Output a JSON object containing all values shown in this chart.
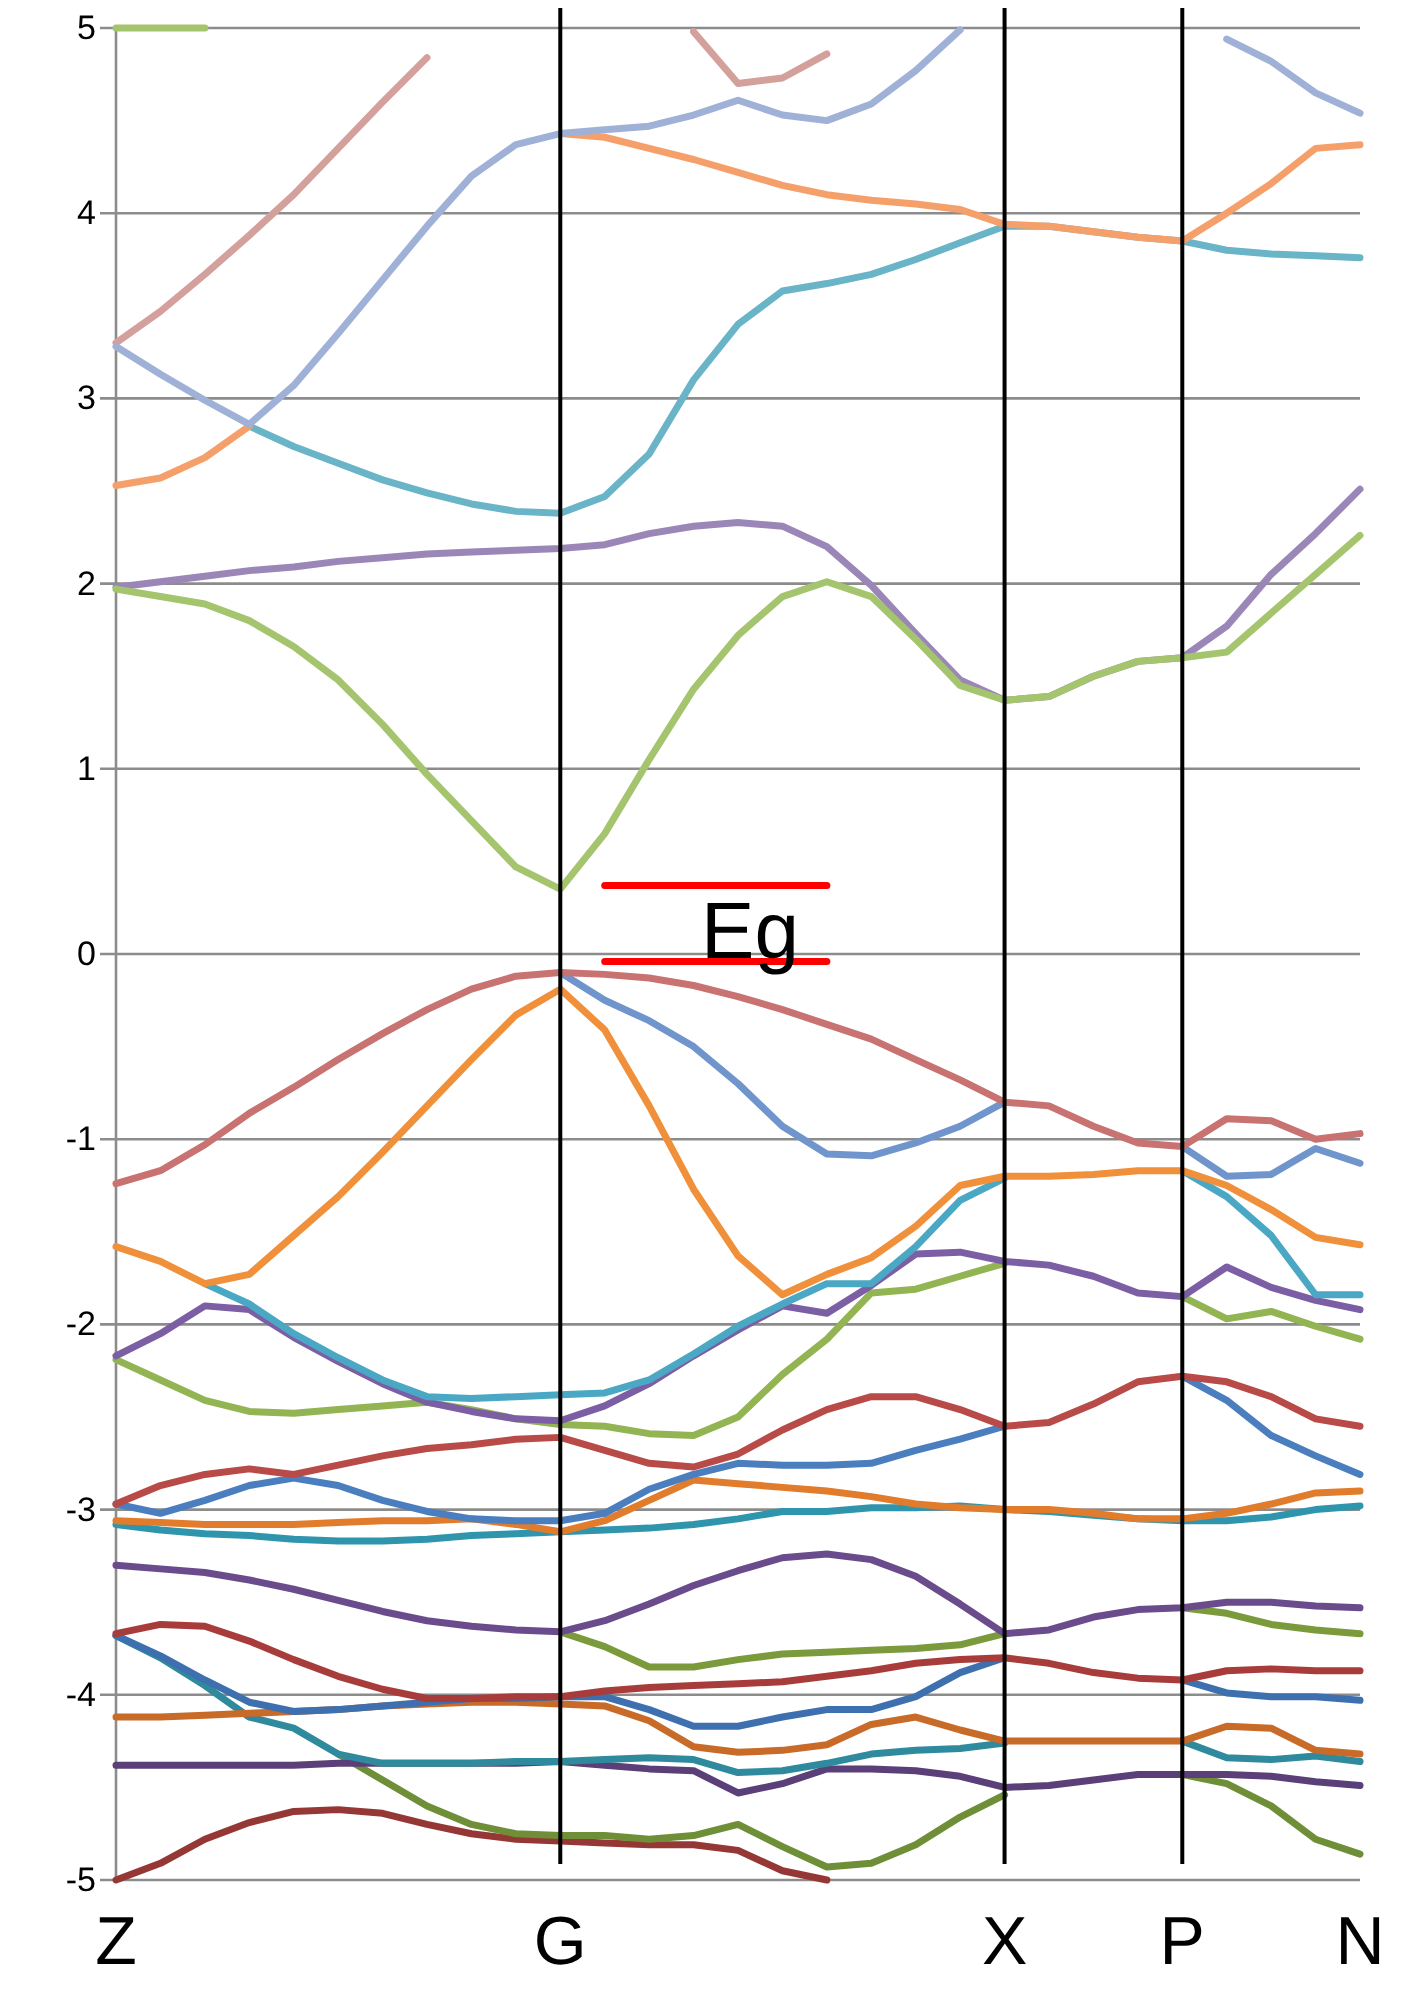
{
  "chart_data": {
    "type": "line",
    "ylim": [
      -5,
      5
    ],
    "categories": [
      "Z",
      null,
      null,
      null,
      null,
      null,
      null,
      null,
      null,
      null,
      "G",
      null,
      null,
      null,
      null,
      null,
      null,
      null,
      null,
      null,
      "X",
      null,
      null,
      null,
      "P",
      null,
      null,
      null,
      "N"
    ],
    "yticks": [
      -5,
      -4,
      -3,
      -2,
      -1,
      0,
      1,
      2,
      3,
      4,
      5
    ],
    "grid": "y",
    "series": [
      {
        "color": "#a5c46e",
        "values": [
          5,
          5,
          5,
          null,
          null,
          null,
          null,
          null,
          null,
          null,
          null,
          null,
          null,
          null,
          null,
          null,
          null,
          null,
          null,
          null,
          null,
          null,
          null,
          null,
          null,
          null,
          null,
          null,
          null
        ]
      },
      {
        "color": "#d4a09c",
        "values": [
          3.3,
          3.47,
          3.67,
          3.88,
          4.1,
          4.35,
          4.6,
          4.84,
          null,
          null,
          null,
          null,
          null,
          4.98,
          4.7,
          4.73,
          4.86,
          null,
          null,
          null,
          null,
          null,
          null,
          null,
          null,
          null,
          null,
          null,
          null
        ]
      },
      {
        "color": "#6ab4c8",
        "values": [
          null,
          null,
          null,
          2.85,
          2.74,
          2.65,
          2.56,
          2.49,
          2.43,
          2.39,
          2.38,
          2.47,
          2.7,
          3.1,
          3.4,
          3.58,
          3.62,
          3.67,
          3.75,
          3.84,
          3.93,
          3.93,
          3.9,
          3.87,
          3.85,
          3.8,
          3.78,
          3.77,
          3.76
        ]
      },
      {
        "color": "#f5a06a",
        "values": [
          2.53,
          2.57,
          2.68,
          2.85,
          null,
          null,
          null,
          null,
          null,
          null,
          4.43,
          4.41,
          4.35,
          4.29,
          4.22,
          4.15,
          4.1,
          4.07,
          4.05,
          4.02,
          3.94,
          3.93,
          3.9,
          3.87,
          3.85,
          4.0,
          4.16,
          4.35,
          4.37
        ]
      },
      {
        "color": "#9fb1d6",
        "values": [
          3.28,
          3.13,
          2.99,
          2.86,
          3.07,
          3.35,
          3.64,
          3.93,
          4.2,
          4.37,
          4.43,
          4.45,
          4.47,
          4.53,
          4.61,
          4.53,
          4.5,
          4.59,
          4.77,
          4.99,
          null,
          null,
          null,
          null,
          null,
          4.94,
          4.82,
          4.65,
          4.54
        ]
      },
      {
        "color": "#9b86b8",
        "values": [
          1.98,
          2.01,
          2.04,
          2.07,
          2.09,
          2.12,
          2.14,
          2.16,
          2.17,
          2.18,
          2.19,
          2.21,
          2.27,
          2.31,
          2.33,
          2.31,
          2.2,
          1.99,
          1.73,
          1.48,
          1.37,
          1.39,
          1.5,
          1.58,
          1.6,
          1.77,
          2.05,
          2.27,
          2.51
        ]
      },
      {
        "color": "#a5c46e",
        "values": [
          1.97,
          1.93,
          1.89,
          1.8,
          1.66,
          1.48,
          1.24,
          0.97,
          0.72,
          0.47,
          0.35,
          0.65,
          1.05,
          1.43,
          1.72,
          1.93,
          2.01,
          1.93,
          1.7,
          1.45,
          1.37,
          1.39,
          1.5,
          1.58,
          1.6,
          1.63,
          1.84,
          2.05,
          2.26
        ]
      },
      {
        "color": "#953735",
        "values": [
          -5,
          -4.91,
          -4.78,
          -4.69,
          -4.63,
          -4.62,
          -4.64,
          -4.7,
          -4.75,
          -4.78,
          -4.79,
          -4.8,
          -4.81,
          -4.81,
          -4.84,
          -4.95,
          -5,
          null,
          null,
          null,
          null,
          null,
          null,
          null,
          null,
          null,
          null,
          null,
          null
        ]
      },
      {
        "color": "#6e8f38",
        "values": [
          null,
          null,
          null,
          null,
          null,
          -4.32,
          -4.46,
          -4.6,
          -4.7,
          -4.75,
          -4.76,
          -4.76,
          -4.78,
          -4.76,
          -4.7,
          -4.82,
          -4.93,
          -4.91,
          -4.81,
          -4.66,
          -4.54,
          null,
          null,
          null,
          -4.43,
          -4.48,
          -4.6,
          -4.78,
          -4.86
        ]
      },
      {
        "color": "#5a3f78",
        "values": [
          -4.38,
          -4.38,
          -4.38,
          -4.38,
          -4.38,
          -4.37,
          -4.37,
          -4.37,
          -4.37,
          -4.37,
          -4.36,
          -4.38,
          -4.4,
          -4.41,
          -4.53,
          -4.48,
          -4.4,
          -4.4,
          -4.41,
          -4.44,
          -4.5,
          -4.49,
          -4.46,
          -4.43,
          -4.43,
          -4.43,
          -4.44,
          -4.47,
          -4.49
        ]
      },
      {
        "color": "#2e8a9c",
        "values": [
          -3.68,
          -3.8,
          -3.95,
          -4.12,
          -4.18,
          -4.32,
          -4.37,
          -4.37,
          -4.37,
          -4.36,
          -4.36,
          -4.35,
          -4.34,
          -4.35,
          -4.42,
          -4.41,
          -4.37,
          -4.32,
          -4.3,
          -4.29,
          -4.26,
          null,
          null,
          null,
          -4.25,
          -4.34,
          -4.35,
          -4.33,
          -4.36
        ]
      },
      {
        "color": "#c86a28",
        "values": [
          -4.12,
          -4.12,
          -4.11,
          -4.1,
          -4.09,
          -4.08,
          -4.06,
          -4.05,
          -4.04,
          -4.04,
          -4.05,
          -4.06,
          -4.14,
          -4.28,
          -4.31,
          -4.3,
          -4.27,
          -4.16,
          -4.12,
          -4.19,
          -4.25,
          -4.25,
          -4.25,
          -4.25,
          -4.25,
          -4.17,
          -4.18,
          -4.3,
          -4.32
        ]
      },
      {
        "color": "#3e6fae",
        "values": [
          -3.68,
          -3.79,
          -3.92,
          -4.04,
          -4.09,
          -4.08,
          -4.06,
          -4.04,
          -4.02,
          -4.02,
          -4.01,
          -4.01,
          -4.08,
          -4.17,
          -4.17,
          -4.12,
          -4.08,
          -4.08,
          -4.01,
          -3.88,
          -3.8,
          null,
          null,
          null,
          -3.92,
          -3.99,
          -4.01,
          -4.01,
          -4.03
        ]
      },
      {
        "color": "#a83c3a",
        "values": [
          -3.67,
          -3.62,
          -3.63,
          -3.71,
          -3.81,
          -3.9,
          -3.97,
          -4.02,
          -4.02,
          -4.01,
          -4.01,
          -3.98,
          -3.96,
          -3.95,
          -3.94,
          -3.93,
          -3.9,
          -3.87,
          -3.83,
          -3.81,
          -3.8,
          -3.83,
          -3.88,
          -3.91,
          -3.92,
          -3.87,
          -3.86,
          -3.87,
          -3.87
        ]
      },
      {
        "color": "#7a9a3c",
        "values": [
          null,
          null,
          null,
          null,
          null,
          null,
          null,
          null,
          null,
          null,
          -3.66,
          -3.74,
          -3.85,
          -3.85,
          -3.81,
          -3.78,
          -3.77,
          -3.76,
          -3.75,
          -3.73,
          -3.67,
          null,
          null,
          null,
          -3.53,
          -3.56,
          -3.62,
          -3.65,
          -3.67
        ]
      },
      {
        "color": "#6a4c8c",
        "values": [
          -3.3,
          -3.32,
          -3.34,
          -3.38,
          -3.43,
          -3.49,
          -3.55,
          -3.6,
          -3.63,
          -3.65,
          -3.66,
          -3.6,
          -3.51,
          -3.41,
          -3.33,
          -3.26,
          -3.24,
          -3.27,
          -3.36,
          -3.51,
          -3.67,
          -3.65,
          -3.58,
          -3.54,
          -3.53,
          -3.5,
          -3.5,
          -3.52,
          -3.53
        ]
      },
      {
        "color": "#2f95ac",
        "values": [
          -3.08,
          -3.11,
          -3.13,
          -3.14,
          -3.16,
          -3.17,
          -3.17,
          -3.16,
          -3.14,
          -3.13,
          -3.12,
          -3.11,
          -3.1,
          -3.08,
          -3.05,
          -3.01,
          -3.01,
          -2.99,
          -2.99,
          -2.98,
          -3.0,
          -3.01,
          -3.03,
          -3.05,
          -3.06,
          -3.06,
          -3.04,
          -3.0,
          -2.98
        ]
      },
      {
        "color": "#e07c2c",
        "values": [
          -3.06,
          -3.07,
          -3.08,
          -3.08,
          -3.08,
          -3.07,
          -3.06,
          -3.06,
          -3.05,
          -3.08,
          -3.12,
          -3.06,
          -2.95,
          -2.84,
          -2.86,
          -2.88,
          -2.9,
          -2.93,
          -2.97,
          -2.99,
          -3.0,
          -3.0,
          -3.02,
          -3.05,
          -3.05,
          -3.02,
          -2.97,
          -2.91,
          -2.9
        ]
      },
      {
        "color": "#4a7ebe",
        "values": [
          -2.97,
          -3.02,
          -2.95,
          -2.87,
          -2.83,
          -2.87,
          -2.95,
          -3.01,
          -3.05,
          -3.06,
          -3.06,
          -3.02,
          -2.89,
          -2.81,
          -2.75,
          -2.76,
          -2.76,
          -2.75,
          -2.68,
          -2.62,
          -2.55,
          null,
          null,
          null,
          -2.28,
          -2.41,
          -2.6,
          -2.71,
          -2.81
        ]
      },
      {
        "color": "#b84a48",
        "values": [
          -2.97,
          -2.87,
          -2.81,
          -2.78,
          -2.81,
          -2.76,
          -2.71,
          -2.67,
          -2.65,
          -2.62,
          -2.61,
          -2.68,
          -2.75,
          -2.77,
          -2.7,
          -2.57,
          -2.46,
          -2.39,
          -2.39,
          -2.46,
          -2.55,
          -2.53,
          -2.43,
          -2.31,
          -2.28,
          -2.31,
          -2.39,
          -2.51,
          -2.55
        ]
      },
      {
        "color": "#92b452",
        "values": [
          -2.19,
          -2.3,
          -2.41,
          -2.47,
          -2.48,
          -2.46,
          -2.44,
          -2.42,
          -2.46,
          -2.51,
          -2.54,
          -2.55,
          -2.59,
          -2.6,
          -2.5,
          -2.27,
          -2.08,
          -1.83,
          -1.81,
          -1.74,
          -1.67,
          null,
          null,
          null,
          -1.85,
          -1.97,
          -1.93,
          -2.01,
          -2.08
        ]
      },
      {
        "color": "#7b5ea4",
        "values": [
          -2.17,
          -2.05,
          -1.9,
          -1.92,
          -2.07,
          -2.2,
          -2.32,
          -2.42,
          -2.47,
          -2.51,
          -2.52,
          -2.44,
          -2.32,
          -2.17,
          -2.03,
          -1.9,
          -1.94,
          -1.79,
          -1.62,
          -1.61,
          -1.66,
          -1.68,
          -1.74,
          -1.83,
          -1.85,
          -1.69,
          -1.8,
          -1.87,
          -1.92
        ]
      },
      {
        "color": "#4aa8c4",
        "values": [
          null,
          null,
          -1.78,
          -1.89,
          -2.05,
          -2.18,
          -2.3,
          -2.39,
          -2.4,
          -2.39,
          -2.38,
          -2.37,
          -2.3,
          -2.16,
          -2.01,
          -1.89,
          -1.78,
          -1.78,
          -1.58,
          -1.33,
          -1.21,
          null,
          null,
          null,
          -1.17,
          -1.31,
          -1.52,
          -1.84,
          -1.84
        ]
      },
      {
        "color": "#f0903a",
        "values": [
          -1.58,
          -1.66,
          -1.78,
          -1.73,
          -1.52,
          -1.31,
          -1.07,
          -0.82,
          -0.57,
          -0.33,
          -0.19,
          -0.41,
          -0.82,
          -1.27,
          -1.63,
          -1.84,
          -1.73,
          -1.64,
          -1.47,
          -1.25,
          -1.2,
          -1.2,
          -1.19,
          -1.17,
          -1.17,
          -1.25,
          -1.38,
          -1.53,
          -1.57
        ]
      },
      {
        "color": "#6f95cc",
        "values": [
          null,
          null,
          null,
          null,
          null,
          null,
          null,
          null,
          null,
          null,
          -0.1,
          -0.25,
          -0.36,
          -0.5,
          -0.7,
          -0.93,
          -1.08,
          -1.09,
          -1.02,
          -0.93,
          -0.8,
          null,
          null,
          null,
          -1.04,
          -1.2,
          -1.19,
          -1.05,
          -1.13
        ]
      },
      {
        "color": "#c87272",
        "values": [
          -1.24,
          -1.17,
          -1.03,
          -0.86,
          -0.72,
          -0.57,
          -0.43,
          -0.3,
          -0.19,
          -0.12,
          -0.1,
          -0.11,
          -0.13,
          -0.17,
          -0.23,
          -0.3,
          -0.38,
          -0.46,
          -0.57,
          -0.68,
          -0.8,
          -0.82,
          -0.93,
          -1.02,
          -1.04,
          -0.89,
          -0.9,
          -1.0,
          -0.97
        ]
      },
      {
        "type": "line",
        "color": "#ff0000",
        "values": [
          null,
          null,
          null,
          null,
          null,
          null,
          null,
          null,
          null,
          null,
          null,
          0.37,
          0.37,
          0.37,
          0.37,
          0.37,
          0.37,
          null,
          null,
          null,
          null,
          null,
          null,
          null,
          null,
          null,
          null,
          null,
          null
        ]
      },
      {
        "type": "line",
        "color": "#ff0000",
        "values": [
          null,
          null,
          null,
          null,
          null,
          null,
          null,
          null,
          null,
          null,
          null,
          -0.04,
          -0.04,
          -0.04,
          -0.04,
          -0.04,
          -0.04,
          null,
          null,
          null,
          null,
          null,
          null,
          null,
          null,
          null,
          null,
          null,
          null
        ]
      }
    ],
    "ref_lines": [
      {
        "axis": "x",
        "value": "G",
        "color": "#000000"
      },
      {
        "axis": "x",
        "value": "X",
        "color": "#000000"
      },
      {
        "axis": "x",
        "value": "P",
        "color": "#000000"
      }
    ],
    "annotations": [
      "Eg"
    ]
  }
}
